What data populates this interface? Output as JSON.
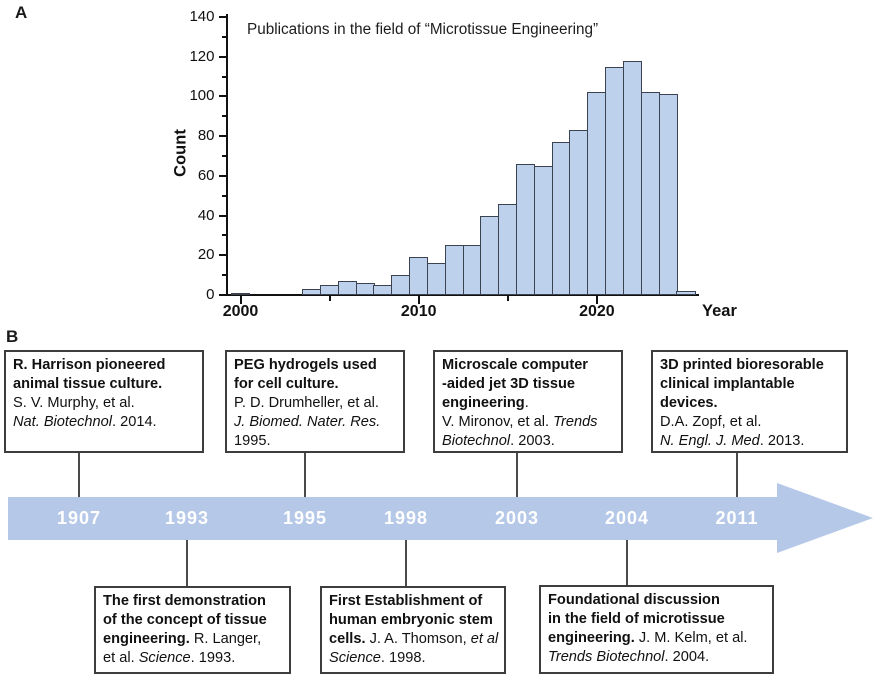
{
  "panels": {
    "a_label": "A",
    "b_label": "B"
  },
  "chart_data": {
    "type": "bar",
    "title": "Publications in the field of “Microtissue Engineering”",
    "xlabel": "Year",
    "ylabel": "Count",
    "ylim": [
      0,
      140
    ],
    "y_major_ticks": [
      0,
      20,
      40,
      60,
      80,
      100,
      120,
      140
    ],
    "x_labeled_ticks": [
      2000,
      2010,
      2020
    ],
    "x_minor_ticks": [
      2005,
      2015
    ],
    "grid": "off",
    "legend": "none",
    "bar_fill": "#bed1ec",
    "bar_edge": "#3b4250",
    "years": [
      2000,
      2004,
      2005,
      2006,
      2007,
      2008,
      2009,
      2010,
      2011,
      2012,
      2013,
      2014,
      2015,
      2016,
      2017,
      2018,
      2019,
      2020,
      2021,
      2022,
      2023,
      2024,
      2025
    ],
    "counts": [
      1,
      3,
      5,
      7,
      6,
      5,
      10,
      19,
      16,
      25,
      25,
      40,
      46,
      66,
      65,
      77,
      83,
      102,
      115,
      118,
      102,
      101,
      2
    ]
  },
  "timeline": {
    "arrow_color": "#b5c8e8",
    "year_text_color": "#ffffff",
    "years": [
      "1907",
      "1993",
      "1995",
      "1998",
      "2003",
      "2004",
      "2011"
    ],
    "events_top": [
      {
        "lines": [
          [
            {
              "t": "R. Harrison pioneered",
              "s": "b"
            }
          ],
          [
            {
              "t": "animal tissue culture.",
              "s": "b"
            }
          ],
          [
            {
              "t": "S. V. Murphy, et al.",
              "s": "r"
            }
          ],
          [
            {
              "t": "Nat. Biotechnol",
              "s": "i"
            },
            {
              "t": ".  2014.",
              "s": "r"
            }
          ]
        ]
      },
      {
        "lines": [
          [
            {
              "t": "PEG hydrogels used",
              "s": "b"
            }
          ],
          [
            {
              "t": "for cell culture.",
              "s": "b"
            }
          ],
          [
            {
              "t": "P. D. Drumheller, et al.",
              "s": "r"
            }
          ],
          [
            {
              "t": "J. Biomed. Nater. Res.",
              "s": "i"
            }
          ],
          [
            {
              "t": "1995.",
              "s": "r"
            }
          ]
        ]
      },
      {
        "lines": [
          [
            {
              "t": "Microscale computer",
              "s": "b"
            }
          ],
          [
            {
              "t": "-aided  jet 3D tissue",
              "s": "b"
            }
          ],
          [
            {
              "t": " engineering",
              "s": "b"
            },
            {
              "t": ".",
              "s": "r"
            }
          ],
          [
            {
              "t": "V. Mironov, et al. ",
              "s": "r"
            },
            {
              "t": "Trends",
              "s": "i"
            }
          ],
          [
            {
              "t": "Biotechnol",
              "s": "i"
            },
            {
              "t": ". 2003.",
              "s": "r"
            }
          ]
        ]
      },
      {
        "lines": [
          [
            {
              "t": "3D printed bioresorable",
              "s": "b"
            }
          ],
          [
            {
              "t": "clinical implantable",
              "s": "b"
            }
          ],
          [
            {
              "t": " devices.",
              "s": "b"
            }
          ],
          [
            {
              "t": "D.A. Zopf, et al.",
              "s": "r"
            }
          ],
          [
            {
              "t": "N. Engl. J. Med",
              "s": "i"
            },
            {
              "t": ". 2013.",
              "s": "r"
            }
          ]
        ]
      }
    ],
    "events_bottom": [
      {
        "lines": [
          [
            {
              "t": "The first demonstration",
              "s": "b"
            }
          ],
          [
            {
              "t": "of the concept of tissue",
              "s": "b"
            }
          ],
          [
            {
              "t": "engineering.",
              "s": "b"
            },
            {
              "t": " R. Langer,",
              "s": "r"
            }
          ],
          [
            {
              "t": "et al. ",
              "s": "r"
            },
            {
              "t": "Science",
              "s": "i"
            },
            {
              "t": ". 1993.",
              "s": "r"
            }
          ]
        ]
      },
      {
        "lines": [
          [
            {
              "t": "First Establishment of",
              "s": "b"
            }
          ],
          [
            {
              "t": "human embryonic stem",
              "s": "b"
            }
          ],
          [
            {
              "t": "cells.",
              "s": "b"
            },
            {
              "t": " J. A. Thomson, ",
              "s": "r"
            },
            {
              "t": "et al",
              "s": "i"
            }
          ],
          [
            {
              "t": "Science",
              "s": "i"
            },
            {
              "t": ". 1998.",
              "s": "r"
            }
          ]
        ]
      },
      {
        "lines": [
          [
            {
              "t": "Foundational discussion",
              "s": "b"
            }
          ],
          [
            {
              "t": " in the field of microtissue",
              "s": "b"
            }
          ],
          [
            {
              "t": "engineering.",
              "s": "b"
            },
            {
              "t": " J. M. Kelm, et al.",
              "s": "r"
            }
          ],
          [
            {
              "t": "Trends Biotechnol",
              "s": "i"
            },
            {
              "t": ". 2004.",
              "s": "r"
            }
          ]
        ]
      }
    ]
  }
}
